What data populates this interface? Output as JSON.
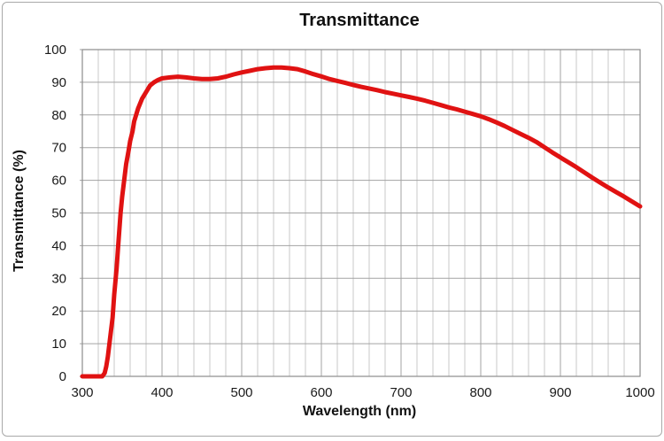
{
  "chart_data": {
    "type": "line",
    "title": "Transmittance",
    "xlabel": "Wavelength (nm)",
    "ylabel": "Transmittance (%)",
    "xlim": [
      300,
      1000
    ],
    "ylim": [
      0,
      100
    ],
    "x_major_ticks": [
      300,
      400,
      500,
      600,
      700,
      800,
      900,
      1000
    ],
    "x_major_step": 100,
    "x_minor_step": 20,
    "y_major_ticks": [
      0,
      10,
      20,
      30,
      40,
      50,
      60,
      70,
      80,
      90,
      100
    ],
    "grid": "x-minor + x-major + y-major",
    "legend": "none",
    "series": [
      {
        "name": "transmittance",
        "color": "#e01212",
        "x": [
          300,
          305,
          310,
          315,
          320,
          325,
          328,
          330,
          332,
          335,
          338,
          340,
          343,
          345,
          348,
          350,
          353,
          355,
          358,
          360,
          363,
          365,
          370,
          375,
          380,
          385,
          390,
          395,
          400,
          410,
          420,
          430,
          440,
          450,
          460,
          470,
          480,
          490,
          500,
          510,
          520,
          530,
          540,
          550,
          560,
          570,
          580,
          590,
          600,
          610,
          620,
          630,
          640,
          650,
          660,
          670,
          680,
          690,
          700,
          710,
          720,
          730,
          740,
          750,
          760,
          770,
          780,
          790,
          800,
          810,
          820,
          830,
          840,
          850,
          860,
          870,
          880,
          890,
          900,
          910,
          920,
          930,
          940,
          950,
          960,
          970,
          980,
          990,
          1000
        ],
        "y": [
          0,
          0,
          0,
          0,
          0,
          0,
          1,
          3,
          6,
          12,
          18,
          25,
          33,
          40,
          50,
          55,
          61,
          65,
          69,
          72,
          75,
          78,
          82,
          85,
          87,
          89,
          90,
          90.7,
          91.2,
          91.5,
          91.7,
          91.5,
          91.2,
          91.0,
          91.0,
          91.2,
          91.7,
          92.4,
          93.0,
          93.5,
          94.0,
          94.3,
          94.5,
          94.5,
          94.3,
          94.0,
          93.3,
          92.5,
          91.8,
          91.0,
          90.4,
          89.8,
          89.2,
          88.6,
          88.1,
          87.6,
          87.0,
          86.5,
          86.0,
          85.5,
          85.0,
          84.4,
          83.7,
          83.0,
          82.3,
          81.7,
          81.0,
          80.3,
          79.6,
          78.7,
          77.7,
          76.6,
          75.4,
          74.2,
          73.0,
          71.7,
          70.1,
          68.5,
          67.0,
          65.5,
          64.0,
          62.4,
          60.8,
          59.3,
          57.8,
          56.4,
          55.0,
          53.5,
          52.0
        ]
      }
    ]
  },
  "style": {
    "line_color": "#e01212",
    "line_width": 5,
    "grid_major": "#a3a3a3",
    "grid_minor": "#c9c9c9",
    "frame": "#8c8c8c",
    "text": "#1a1a1a",
    "background": "#ffffff",
    "outer_border": "#a9a9a9"
  }
}
